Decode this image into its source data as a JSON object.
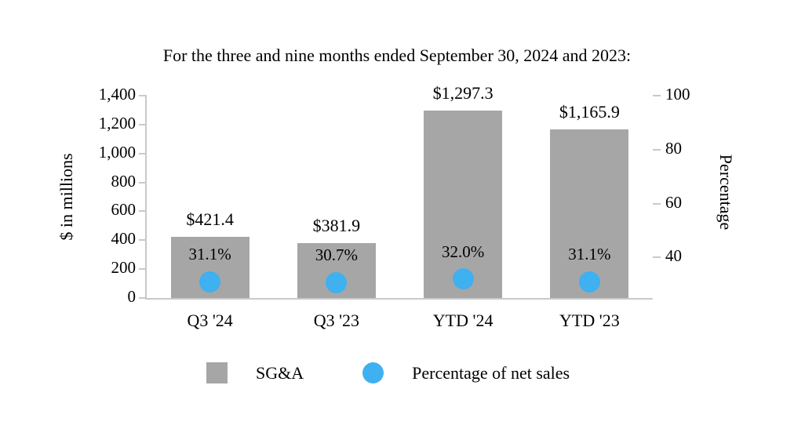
{
  "title": "For the three and nine months ended September 30, 2024 and 2023:",
  "left_axis": {
    "label": "$ in millions",
    "min": 0,
    "max": 1400,
    "ticks": [
      {
        "label": "1,400",
        "value": 1400
      },
      {
        "label": "1,200",
        "value": 1200
      },
      {
        "label": "1,000",
        "value": 1000
      },
      {
        "label": "800",
        "value": 800
      },
      {
        "label": "600",
        "value": 600
      },
      {
        "label": "400",
        "value": 400
      },
      {
        "label": "200",
        "value": 200
      },
      {
        "label": "0",
        "value": 0
      }
    ]
  },
  "right_axis": {
    "label": "Percentage",
    "min": 25,
    "max": 100,
    "ticks": [
      {
        "label": "100",
        "value": 100
      },
      {
        "label": "80",
        "value": 80
      },
      {
        "label": "60",
        "value": 60
      },
      {
        "label": "40",
        "value": 40
      }
    ]
  },
  "legend": [
    {
      "label": "SG&A",
      "swatch": "square",
      "color": "#a6a6a6"
    },
    {
      "label": "Percentage of net sales",
      "swatch": "circle",
      "color": "#3fb0f0"
    }
  ],
  "colors": {
    "bar": "#a6a6a6",
    "dot": "#3fb0f0",
    "axis_line": "#c9c9c9",
    "text": "#000000",
    "background": "#ffffff"
  },
  "chart_data": {
    "type": "bar",
    "title": "For the three and nine months ended September 30, 2024 and 2023:",
    "categories": [
      "Q3 '24",
      "Q3 '23",
      "YTD '24",
      "YTD '23"
    ],
    "series": [
      {
        "name": "SG&A",
        "type": "bar",
        "axis": "left",
        "values": [
          421.4,
          381.9,
          1297.3,
          1165.9
        ],
        "labels": [
          "$421.4",
          "$381.9",
          "$1,297.3",
          "$1,165.9"
        ]
      },
      {
        "name": "Percentage of net sales",
        "type": "scatter",
        "axis": "right",
        "values": [
          31.1,
          30.7,
          32.0,
          31.1
        ],
        "labels": [
          "31.1%",
          "30.7%",
          "32.0%",
          "31.1%"
        ]
      }
    ],
    "xlabel": "",
    "ylabel_left": "$ in millions",
    "ylabel_right": "Percentage",
    "ylim_left": [
      0,
      1400
    ],
    "ylim_right": [
      25,
      100
    ],
    "grid": false,
    "legend_position": "bottom"
  }
}
